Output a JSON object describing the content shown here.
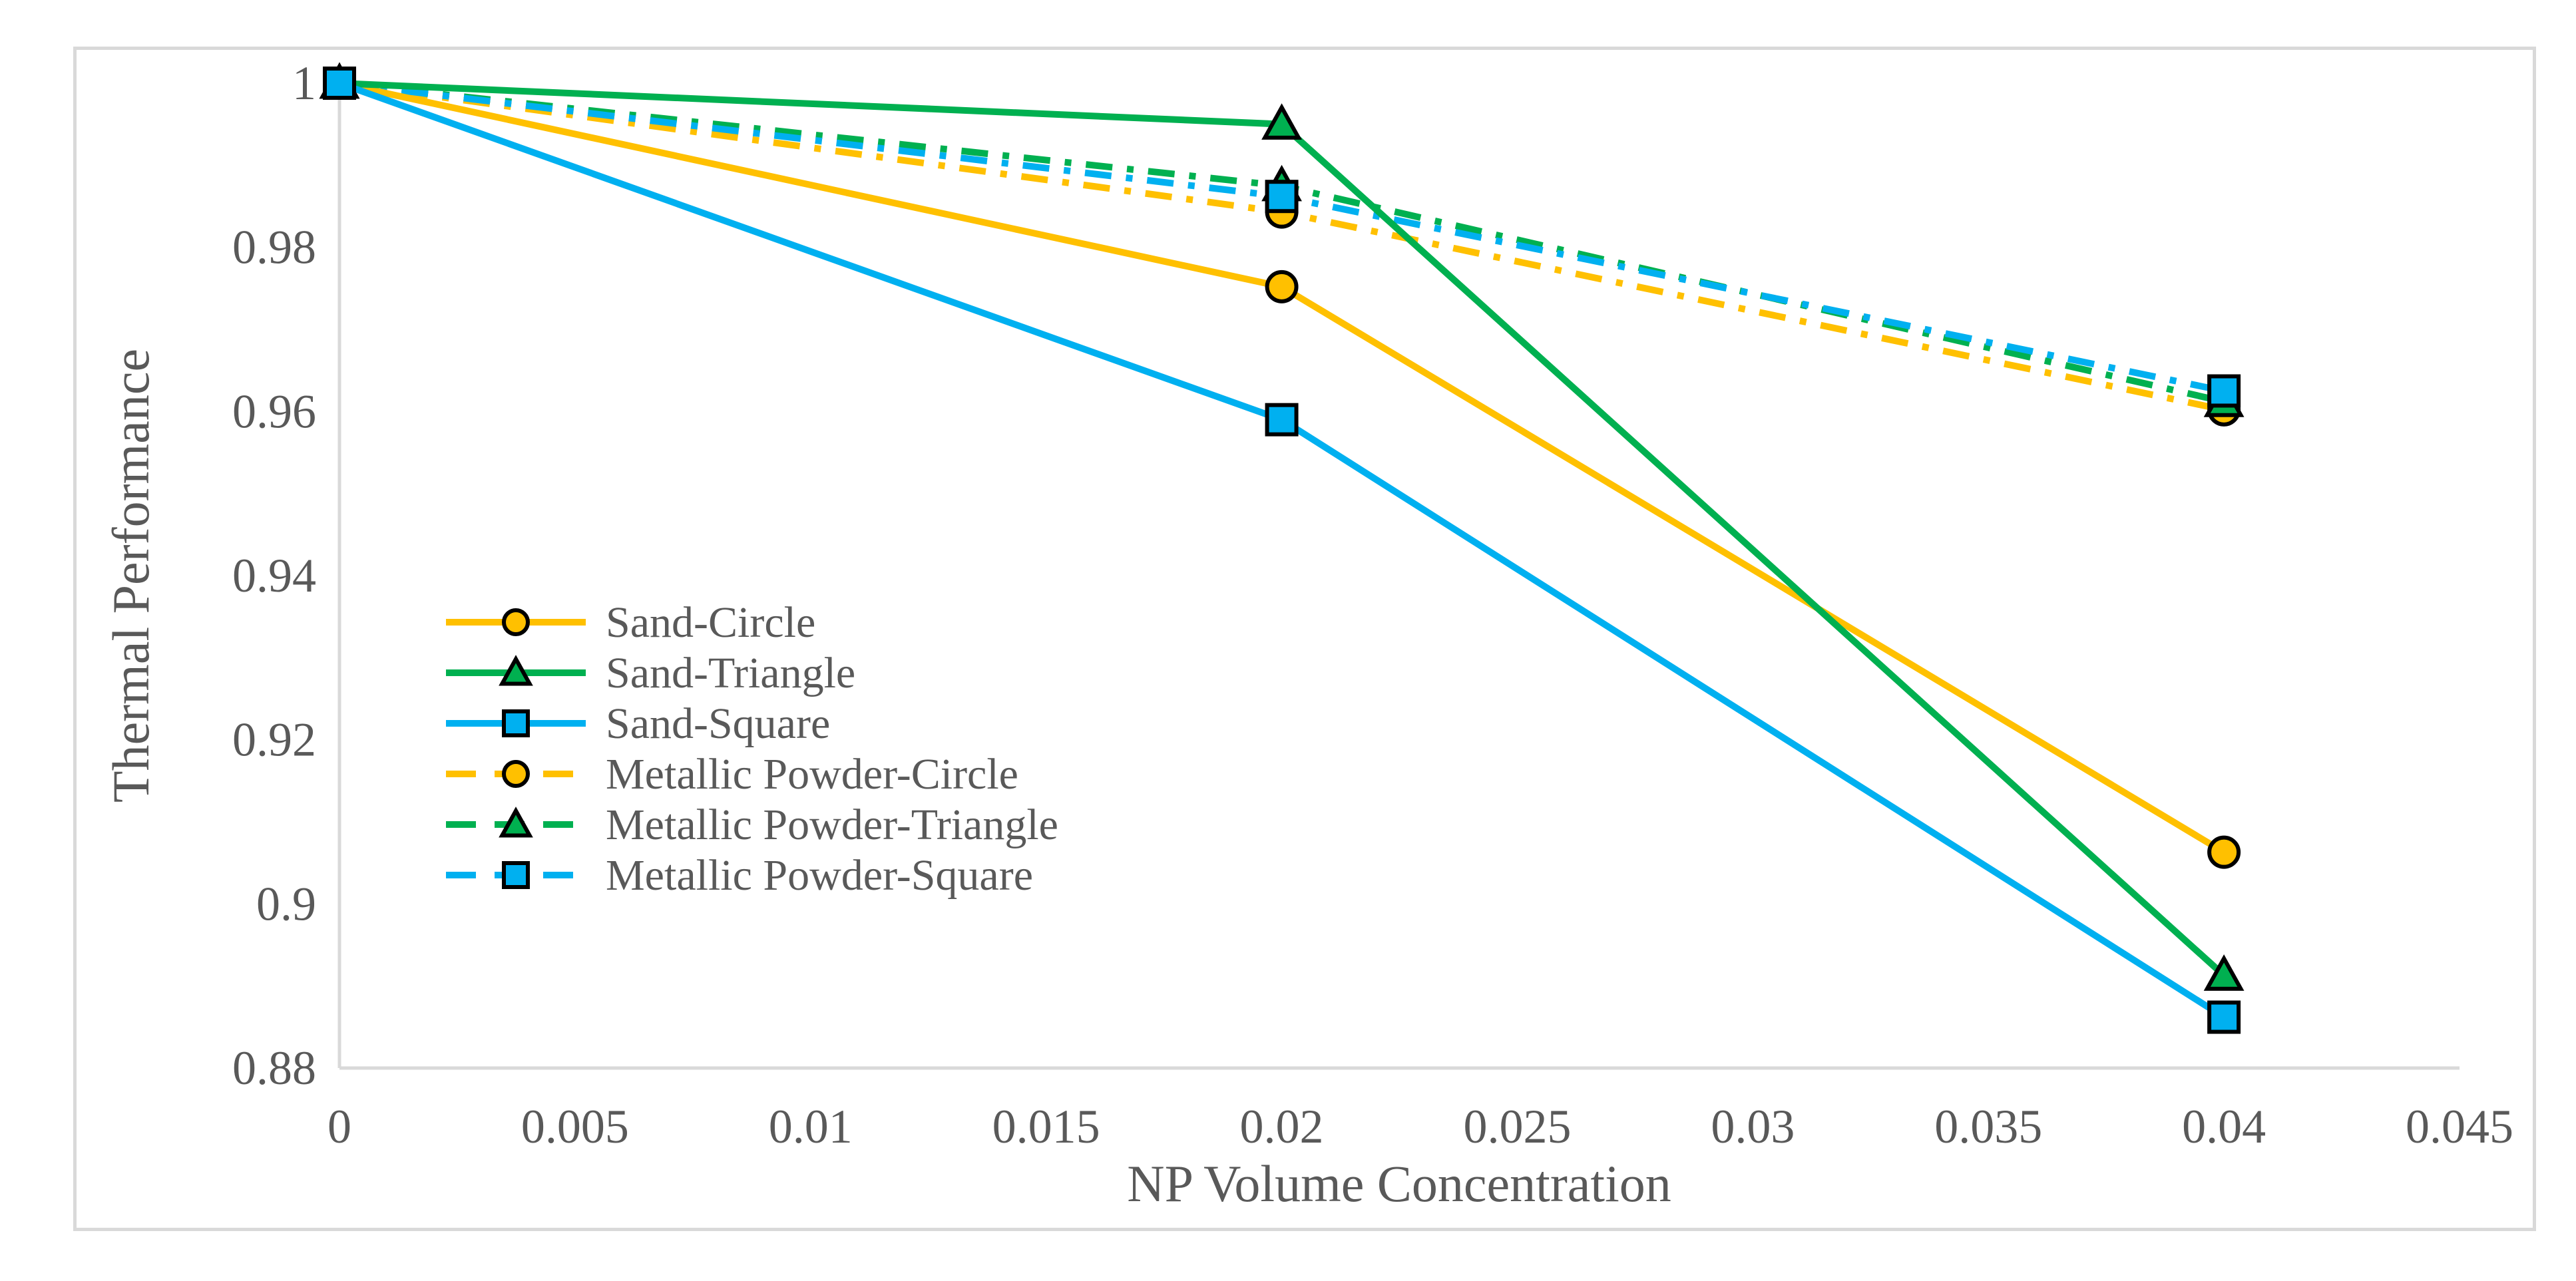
{
  "chart_data": {
    "type": "line",
    "title": "",
    "xlabel": "NP Volume Concentration",
    "ylabel": "Thermal Performance",
    "xlim": [
      0,
      0.045
    ],
    "ylim": [
      0.88,
      1.0
    ],
    "x_ticks": [
      "0",
      "0.005",
      "0.01",
      "0.015",
      "0.02",
      "0.025",
      "0.03",
      "0.035",
      "0.04",
      "0.045"
    ],
    "y_ticks": [
      "0.88",
      "0.9",
      "0.92",
      "0.94",
      "0.96",
      "0.98",
      "1"
    ],
    "grid": false,
    "legend_position": "center-left",
    "series": [
      {
        "name": "Sand-Circle",
        "x": [
          0,
          0.02,
          0.04
        ],
        "values": [
          1.0,
          0.9752,
          0.9063
        ],
        "color": "#FFC000",
        "marker": "circle",
        "dash": "solid"
      },
      {
        "name": "Sand-Triangle",
        "x": [
          0,
          0.02,
          0.04
        ],
        "values": [
          1.0,
          0.995,
          0.8913
        ],
        "color": "#00B050",
        "marker": "triangle",
        "dash": "solid"
      },
      {
        "name": "Sand-Square",
        "x": [
          0,
          0.02,
          0.04
        ],
        "values": [
          1.0,
          0.959,
          0.8862
        ],
        "color": "#00B0F0",
        "marker": "square",
        "dash": "solid"
      },
      {
        "name": "Metallic Powder-Circle",
        "x": [
          0,
          0.02,
          0.04
        ],
        "values": [
          1.0,
          0.9843,
          0.9602
        ],
        "color": "#FFC000",
        "marker": "circle",
        "dash": "dashdot"
      },
      {
        "name": "Metallic Powder-Triangle",
        "x": [
          0,
          0.02,
          0.04
        ],
        "values": [
          1.0,
          0.9875,
          0.9612
        ],
        "color": "#00B050",
        "marker": "triangle",
        "dash": "dashdot"
      },
      {
        "name": "Metallic Powder-Square",
        "x": [
          0,
          0.02,
          0.04
        ],
        "values": [
          1.0,
          0.9862,
          0.9625
        ],
        "color": "#00B0F0",
        "marker": "square",
        "dash": "dashdot"
      }
    ]
  }
}
